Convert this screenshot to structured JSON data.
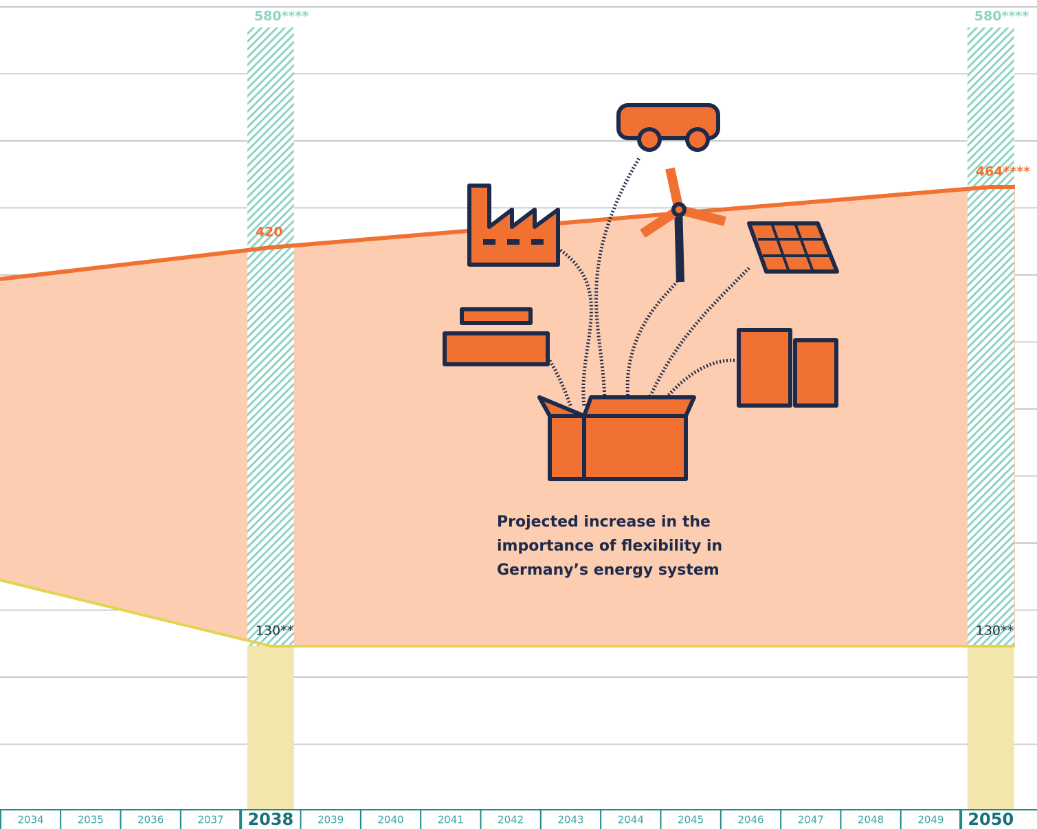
{
  "chart_data": {
    "type": "range-area",
    "x": [
      2033.49,
      2038,
      2050
    ],
    "xlim": [
      2033.49,
      2050.77
    ],
    "ylim": [
      0,
      600
    ],
    "xticks": [
      2034,
      2035,
      2036,
      2037,
      2038,
      2039,
      2040,
      2041,
      2042,
      2043,
      2044,
      2045,
      2046,
      2047,
      2048,
      2049,
      2050
    ],
    "series": [
      {
        "color": "#f07132",
        "values": [
          397,
          420,
          464
        ],
        "value_labels": [
          null,
          "420",
          "464****"
        ]
      },
      {
        "color": "#e3d44f",
        "values": [
          178,
          130,
          130
        ],
        "value_labels": [
          null,
          "130**",
          "130**"
        ]
      }
    ],
    "area_color": "#fccdb0",
    "highlights": [
      {
        "x": 2038,
        "max": 580,
        "max_label": "580****",
        "min": 130
      },
      {
        "x": 2050,
        "max": 580,
        "max_label": "580****",
        "min": 130
      }
    ],
    "highlight_color": "#8fd3c3",
    "base_color": "#f2e6ac",
    "annotation": [
      "Projected increase in the",
      "importance of flexibility in",
      "Germany’s energy system"
    ]
  }
}
